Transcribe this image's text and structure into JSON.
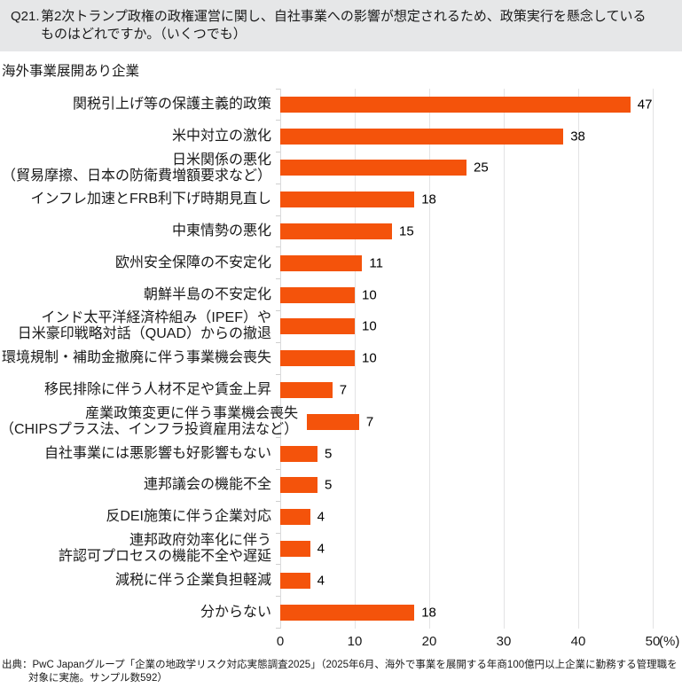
{
  "header": {
    "prefix": "Q21.",
    "line1": "第2次トランプ政権の政権運営に関し、自社事業への影響が想定されるため、政策実行を懸念している",
    "line2": "ものはどれですか。（いくつでも）"
  },
  "chart_data": {
    "type": "bar",
    "orientation": "horizontal",
    "subtitle": "海外事業展開あり企業",
    "categories": [
      [
        "関税引上げ等の保護主義的政策"
      ],
      [
        "米中対立の激化"
      ],
      [
        "日米関係の悪化",
        "（貿易摩擦、日本の防衛費増額要求など）"
      ],
      [
        "インフレ加速とFRB利下げ時期見直し"
      ],
      [
        "中東情勢の悪化"
      ],
      [
        "欧州安全保障の不安定化"
      ],
      [
        "朝鮮半島の不安定化"
      ],
      [
        "インド太平洋経済枠組み（IPEF）や",
        "日米豪印戦略対話（QUAD）からの撤退"
      ],
      [
        "環境規制・補助金撤廃に伴う事業機会喪失"
      ],
      [
        "移民排除に伴う人材不足や賃金上昇"
      ],
      [
        "産業政策変更に伴う事業機会喪失",
        "（CHIPSプラス法、インフラ投資雇用法など）"
      ],
      [
        "自社事業には悪影響も好影響もない"
      ],
      [
        "連邦議会の機能不全"
      ],
      [
        "反DEI施策に伴う企業対応"
      ],
      [
        "連邦政府効率化に伴う",
        "許認可プロセスの機能不全や遅延"
      ],
      [
        "減税に伴う企業負担軽減"
      ],
      [
        "分からない"
      ]
    ],
    "values": [
      47,
      38,
      25,
      18,
      15,
      11,
      10,
      10,
      10,
      7,
      7,
      5,
      5,
      4,
      4,
      4,
      18
    ],
    "xlim": [
      0,
      50
    ],
    "xticks": [
      0,
      10,
      20,
      30,
      40,
      50
    ],
    "unit_label": "(%)",
    "bar_color": "#F4530B",
    "grid": true,
    "value_labels": true
  },
  "footer": {
    "line1": "出典：PwC Japanグループ「企業の地政学リスク対応実態調査2025」（2025年6月、海外で事業を展開する年商100億円以上企業に勤務する管理職を",
    "line2": "対象に実施。サンプル数592）"
  }
}
